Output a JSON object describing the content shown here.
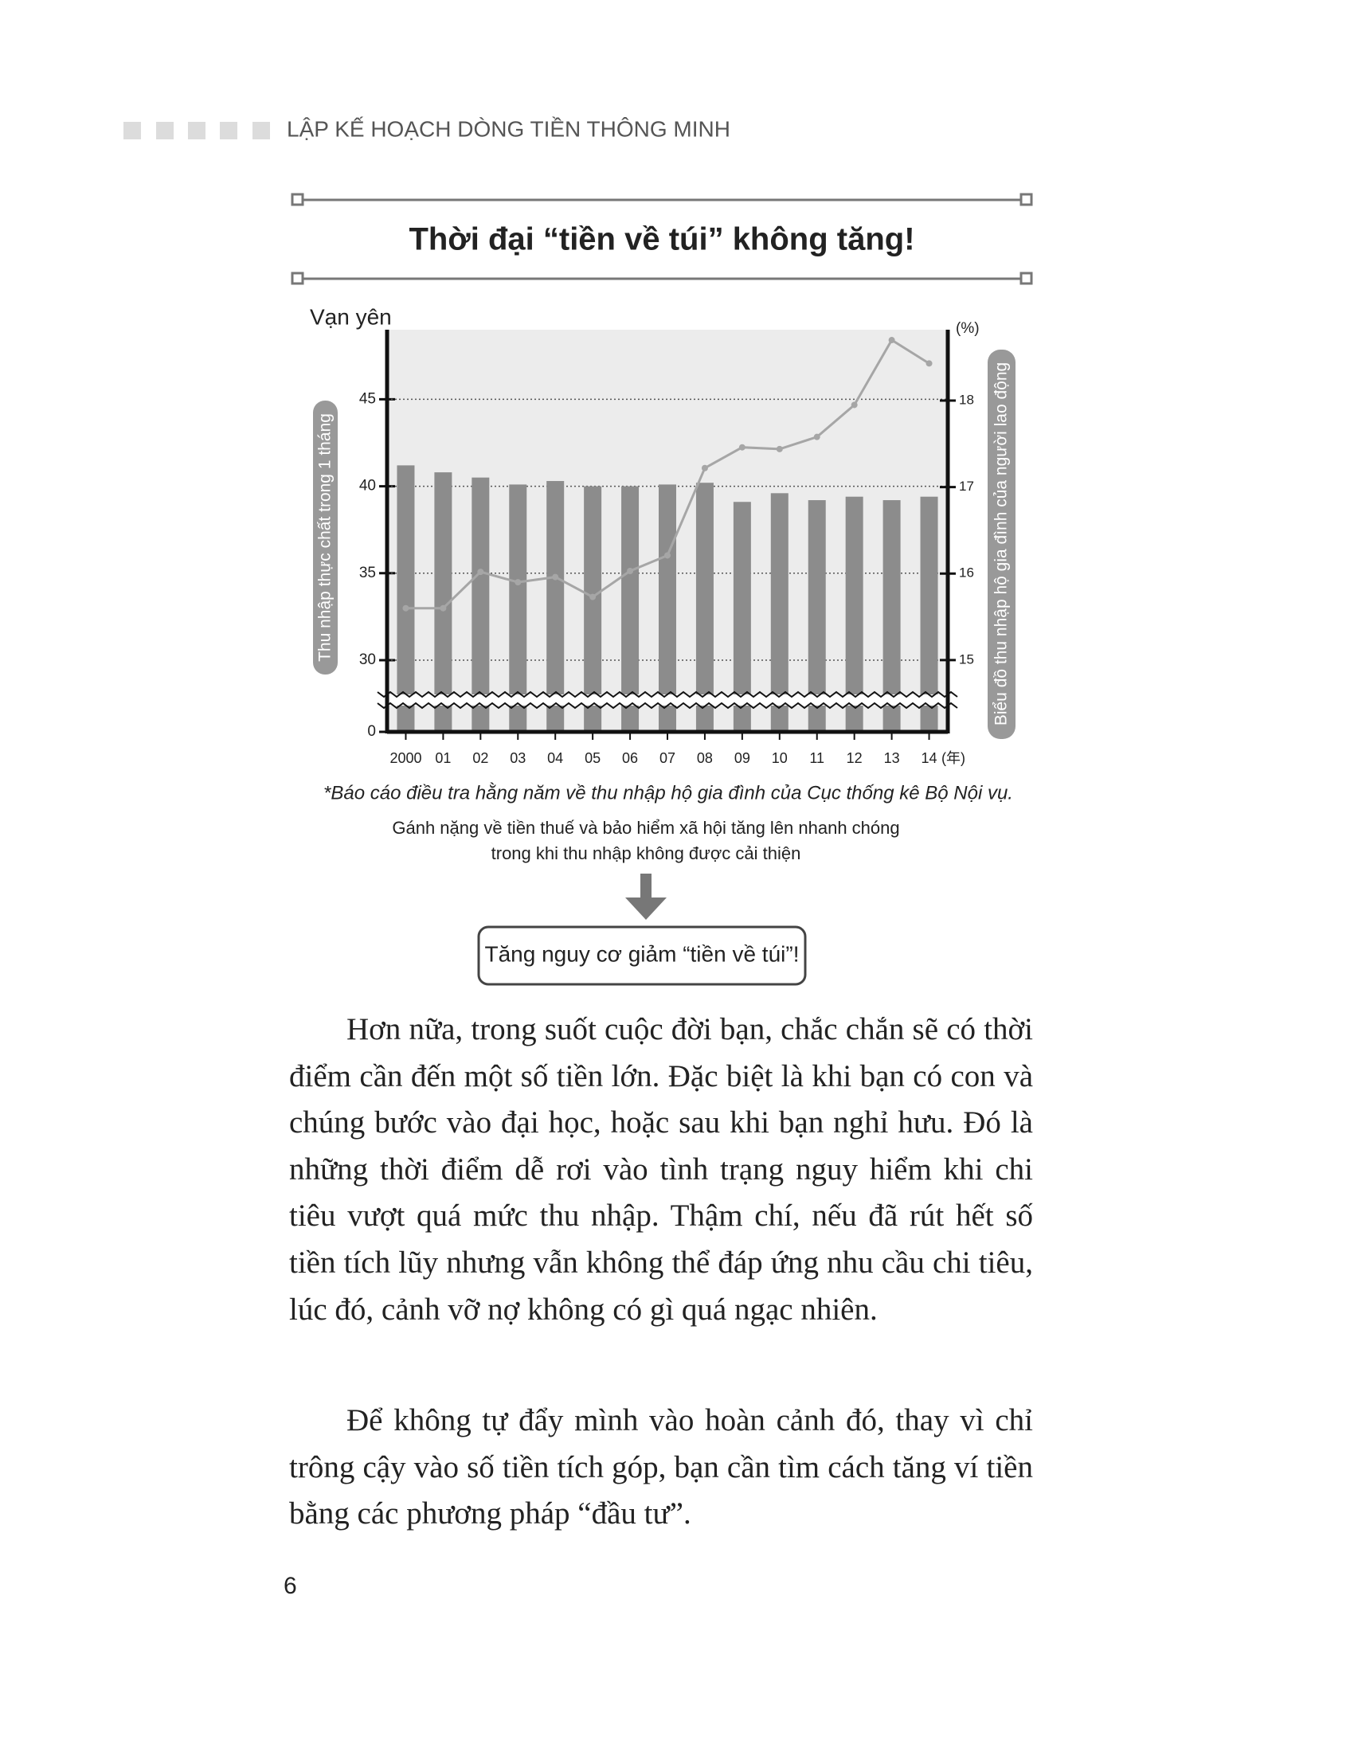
{
  "header": {
    "title": "LẬP KẾ HOẠCH DÒNG TIỀN THÔNG MINH"
  },
  "chart_data": {
    "type": "bar",
    "title": "Thời đại “tiền về túi” không tăng!",
    "y_unit": "Vạn yên",
    "y2_unit": "(%)",
    "x_unit": "(年)",
    "y_label": "Thu nhập thực chất trong 1 tháng",
    "y2_label": "Biểu đồ thu nhập hộ gia đình của người lao động",
    "categories": [
      "2000",
      "01",
      "02",
      "03",
      "04",
      "05",
      "06",
      "07",
      "08",
      "09",
      "10",
      "11",
      "12",
      "13",
      "14"
    ],
    "series": [
      {
        "type": "bar",
        "color": "#8c8c8c",
        "values": [
          41.2,
          40.8,
          40.5,
          40.1,
          40.3,
          40.0,
          40.0,
          40.1,
          40.2,
          39.1,
          39.6,
          39.2,
          39.4,
          39.2,
          39.4
        ]
      },
      {
        "type": "line",
        "axis": "y2",
        "color": "#a6a6a6",
        "values": [
          15.6,
          15.6,
          16.02,
          15.9,
          15.96,
          15.73,
          16.03,
          16.21,
          17.22,
          17.46,
          17.44,
          17.58,
          17.95,
          18.7,
          18.43
        ]
      }
    ],
    "ylim": [
      0,
      49
    ],
    "yticks": [
      0,
      30,
      35,
      40,
      45
    ],
    "y2lim": [
      14.17,
      18.82
    ],
    "y2ticks": [
      15,
      16,
      17,
      18
    ],
    "axis_break": true,
    "grid": true
  },
  "source": "*Báo cáo điều tra hằng năm về thu nhập hộ gia đình của Cục thống kê Bộ Nội vụ.",
  "caption": [
    "Gánh nặng về tiền thuế và bảo hiểm xã hội tăng lên nhanh chóng",
    "trong khi thu nhập không được cải thiện"
  ],
  "callout": "Tăng nguy cơ giảm “tiền về túi”!",
  "paragraphs": [
    "Hơn nữa, trong suốt cuộc đời bạn, chắc chắn sẽ có thời điểm cần đến một số tiền lớn. Đặc biệt là khi bạn có con và chúng bước vào đại học, hoặc sau khi bạn nghỉ hưu. Đó là những thời điểm dễ rơi vào tình trạng nguy hiểm khi chi tiêu vượt quá mức thu nhập. Thậm chí, nếu đã rút hết số tiền tích lũy nhưng vẫn không thể đáp ứng nhu cầu chi tiêu, lúc đó, cảnh vỡ nợ không có gì quá ngạc nhiên.",
    "Để không tự đẩy mình vào hoàn cảnh đó, thay vì chỉ trông cậy vào số tiền tích góp, bạn cần tìm cách tăng ví tiền bằng các phương pháp “đầu tư”."
  ],
  "page_number": "6"
}
